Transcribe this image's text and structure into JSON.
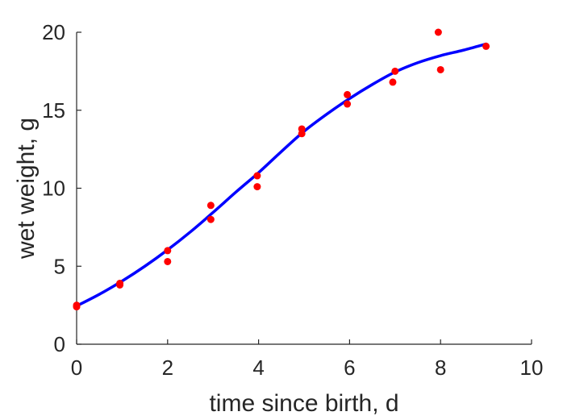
{
  "chart_data": {
    "type": "scatter",
    "title": "",
    "xlabel": "time since birth, d",
    "ylabel": "wet weight, g",
    "xlim": [
      0,
      10
    ],
    "ylim": [
      0,
      20
    ],
    "xticks": [
      0,
      2,
      4,
      6,
      8,
      10
    ],
    "yticks": [
      0,
      5,
      10,
      15,
      20
    ],
    "grid": false,
    "series": [
      {
        "kind": "points",
        "color": "#ff0000",
        "x": [
          0,
          0,
          0.95,
          0.95,
          2,
          2,
          2.95,
          2.95,
          3.97,
          3.97,
          4.95,
          4.95,
          5.95,
          5.95,
          6.95,
          7,
          7.95,
          8,
          9
        ],
        "y": [
          2.4,
          2.5,
          3.8,
          3.9,
          5.3,
          6.0,
          8.0,
          8.9,
          10.1,
          10.8,
          13.5,
          13.8,
          15.4,
          16.0,
          16.8,
          17.5,
          20.0,
          17.6,
          19.1
        ]
      },
      {
        "kind": "fit-line",
        "color": "#0000ff",
        "x": [
          0,
          0.5,
          1,
          1.5,
          2,
          2.5,
          3,
          3.5,
          4,
          4.5,
          5,
          5.5,
          6,
          6.5,
          7,
          7.5,
          8,
          8.5,
          9
        ],
        "y": [
          2.45,
          3.2,
          4.05,
          5.0,
          6.05,
          7.2,
          8.45,
          9.75,
          11.0,
          12.35,
          13.65,
          14.75,
          15.75,
          16.65,
          17.45,
          18.05,
          18.5,
          18.85,
          19.25
        ]
      }
    ]
  }
}
